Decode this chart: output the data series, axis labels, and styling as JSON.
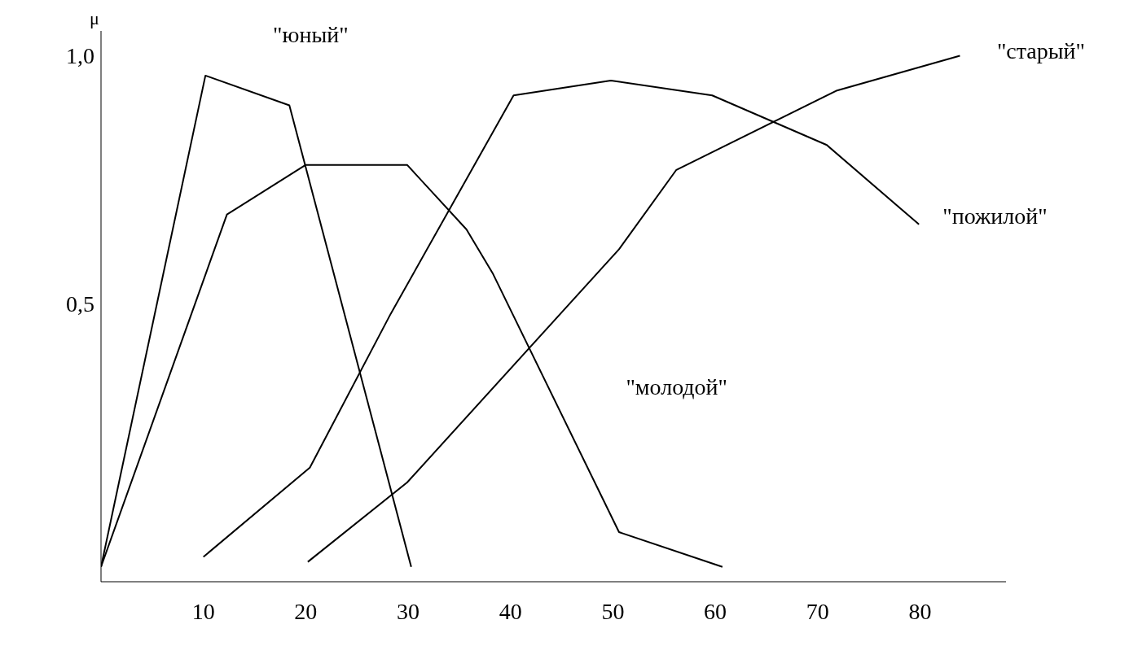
{
  "chart_data": {
    "type": "line",
    "ylabel": "μ",
    "xlim": [
      0,
      88.4
    ],
    "ylim": [
      -0.06,
      1.05
    ],
    "xticks": [
      10,
      20,
      30,
      40,
      50,
      60,
      70,
      80
    ],
    "yticks": [
      {
        "value": 0.5,
        "label": "0,5"
      },
      {
        "value": 1.0,
        "label": "1,0"
      }
    ],
    "grid": false,
    "legend": false,
    "marker": "none",
    "line_style": "solid",
    "series": [
      {
        "name": "\"юный\"",
        "color": "#000000",
        "x": [
          0,
          10.2,
          18.4,
          30.3
        ],
        "values": [
          -0.03,
          0.96,
          0.9,
          -0.03
        ]
      },
      {
        "name": "\"молодой\"",
        "color": "#000000",
        "x": [
          0,
          12.3,
          20,
          29.9,
          35.7,
          38.3,
          50.6,
          60.7
        ],
        "values": [
          -0.03,
          0.68,
          0.78,
          0.78,
          0.65,
          0.56,
          0.04,
          -0.03
        ]
      },
      {
        "name": "\"пожилой\"",
        "color": "#000000",
        "x": [
          10,
          20.4,
          28.3,
          40.3,
          49.8,
          59.7,
          70.9,
          79.9
        ],
        "values": [
          -0.01,
          0.17,
          0.48,
          0.92,
          0.95,
          0.92,
          0.82,
          0.66
        ]
      },
      {
        "name": "\"старый\"",
        "color": "#000000",
        "x": [
          20.2,
          29.9,
          50.6,
          56.2,
          71.9,
          83.9
        ],
        "values": [
          -0.02,
          0.14,
          0.61,
          0.77,
          0.93,
          1.0
        ]
      }
    ]
  }
}
